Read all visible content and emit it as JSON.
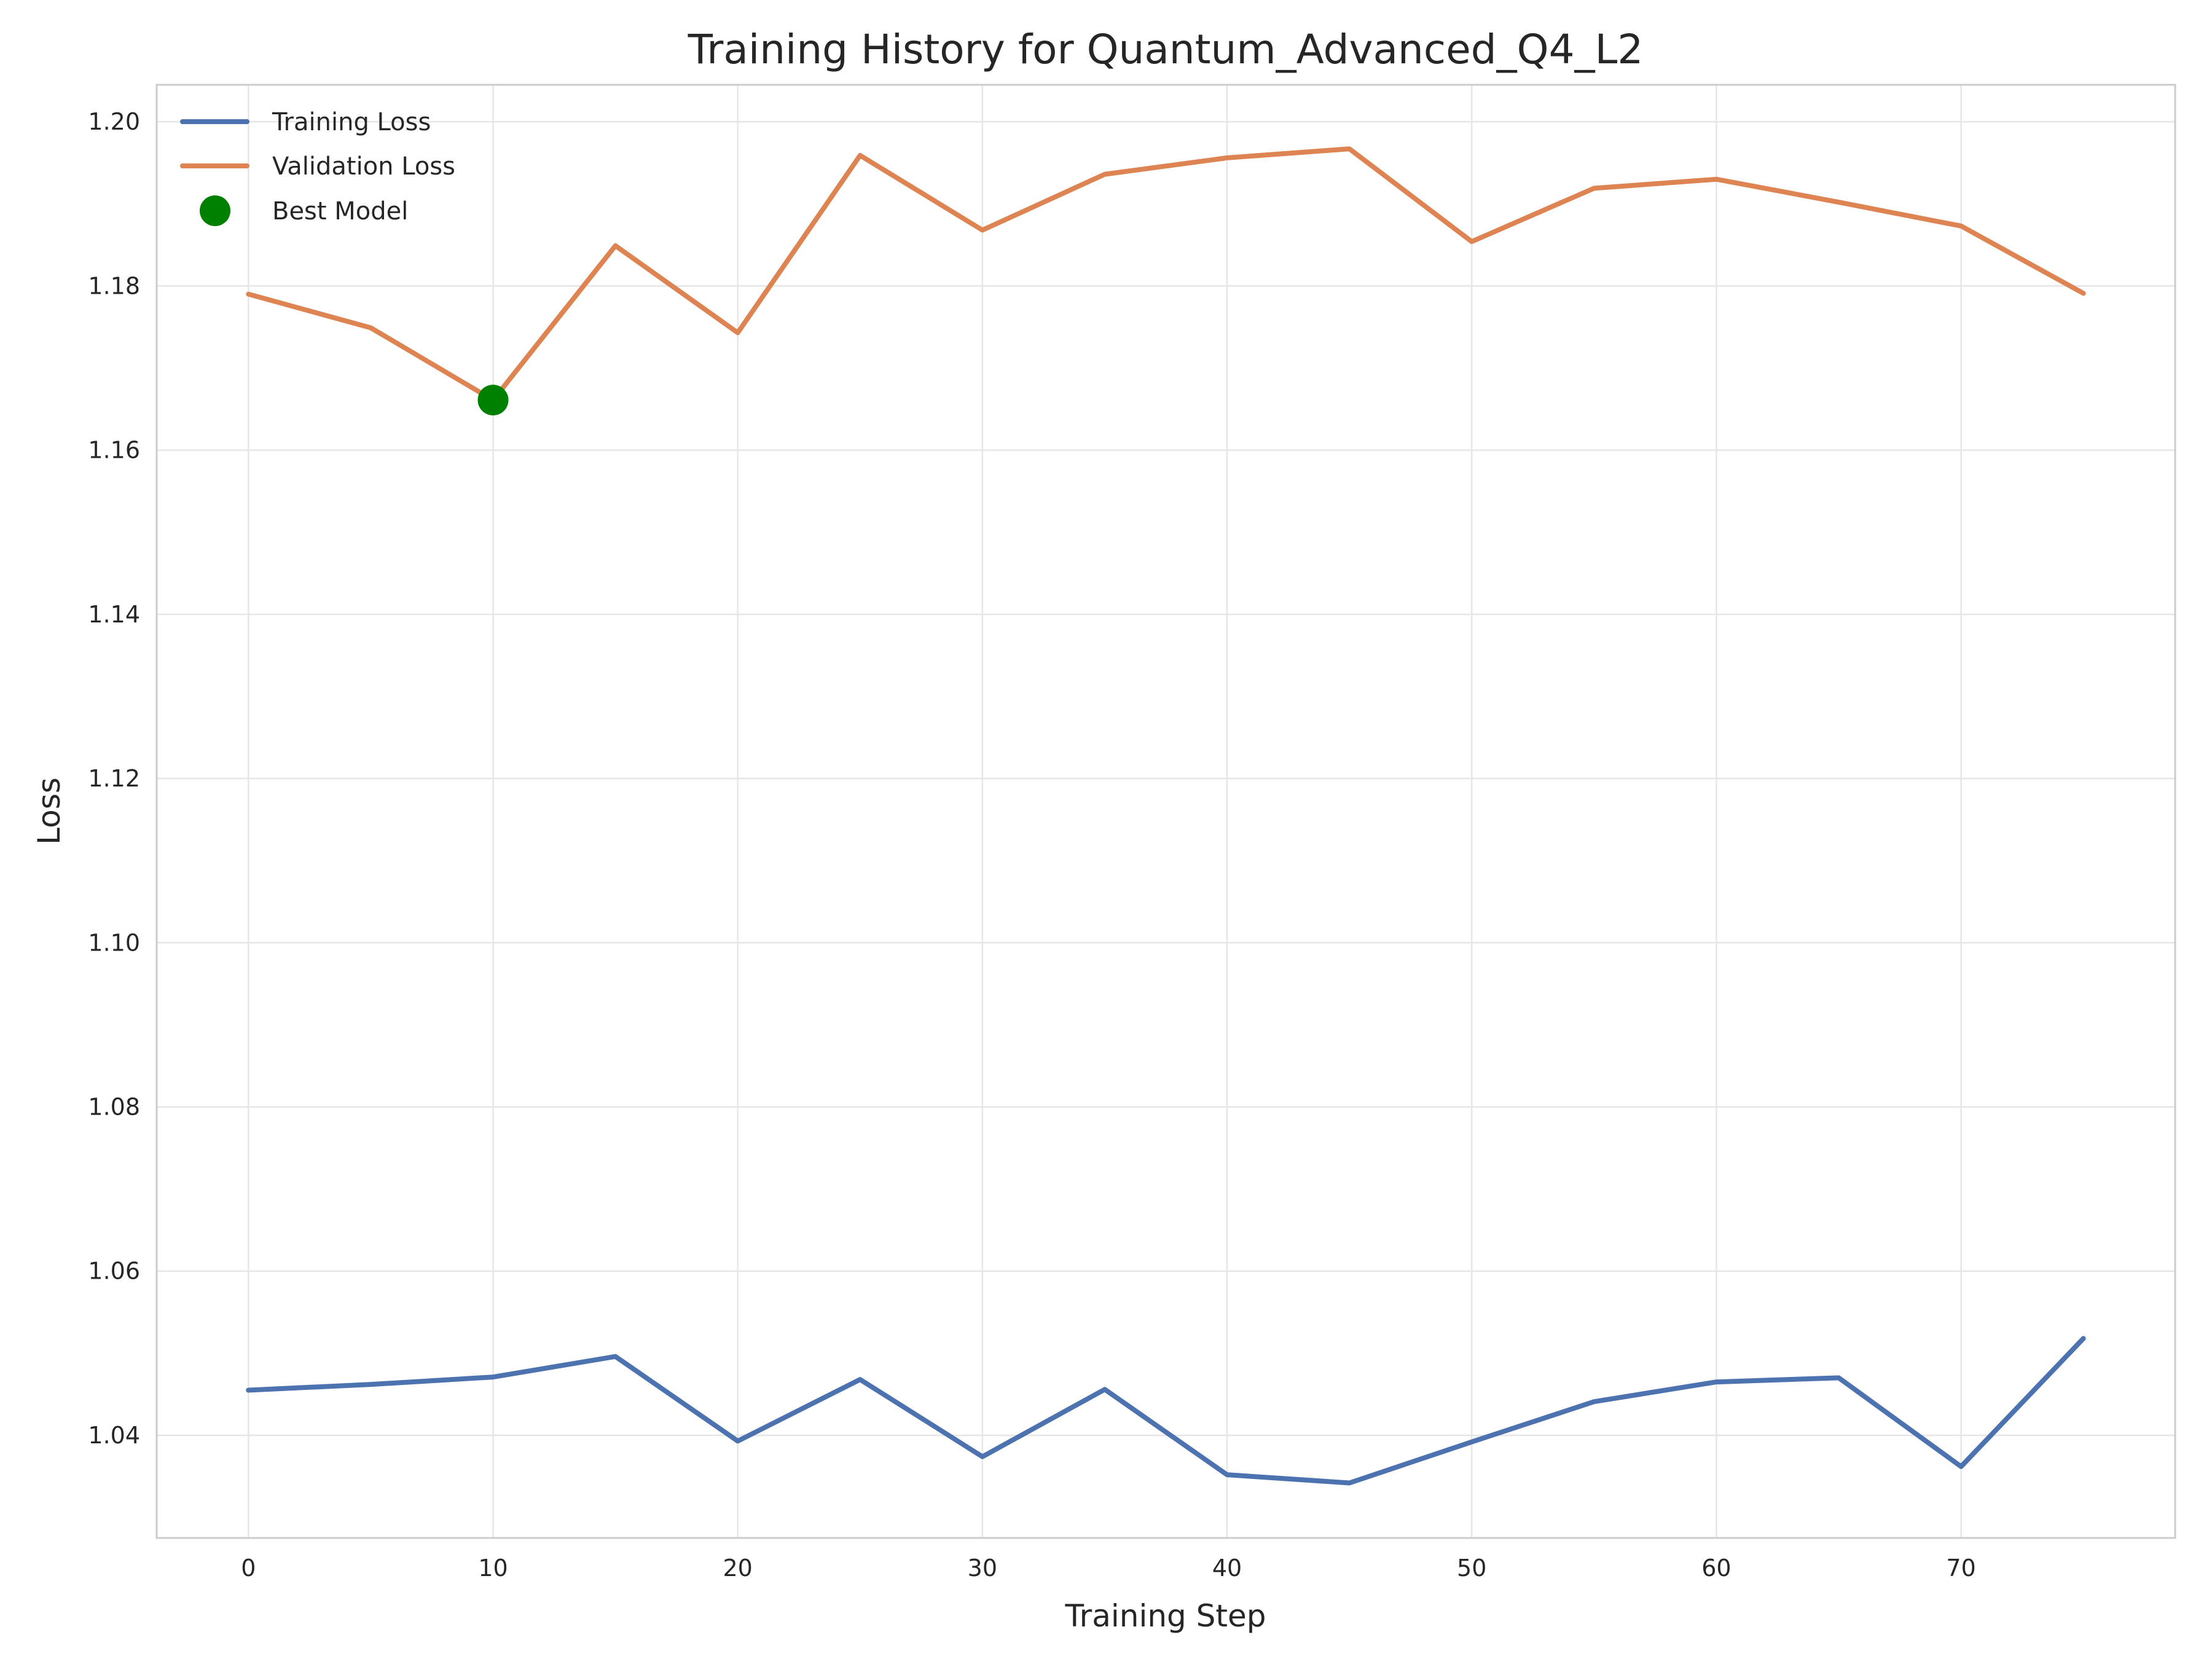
{
  "chart_data": {
    "type": "line",
    "title": "Training History for Quantum_Advanced_Q4_L2",
    "xlabel": "Training Step",
    "ylabel": "Loss",
    "xlim": [
      -3.75,
      78.75
    ],
    "ylim": [
      1.0275,
      1.2045
    ],
    "x_ticks": [
      0,
      10,
      20,
      30,
      40,
      50,
      60,
      70
    ],
    "y_ticks": [
      1.04,
      1.06,
      1.08,
      1.1,
      1.12,
      1.14,
      1.16,
      1.18,
      1.2
    ],
    "x_tick_labels": [
      "0",
      "10",
      "20",
      "30",
      "40",
      "50",
      "60",
      "70"
    ],
    "y_tick_labels": [
      "1.04",
      "1.06",
      "1.08",
      "1.10",
      "1.12",
      "1.14",
      "1.16",
      "1.18",
      "1.20"
    ],
    "grid": true,
    "legend_position": "top-left",
    "x": [
      0,
      5,
      10,
      15,
      20,
      25,
      30,
      35,
      40,
      45,
      50,
      55,
      60,
      65,
      70,
      75
    ],
    "series": [
      {
        "name": "Training Loss",
        "color": "#4c72b0",
        "values": [
          1.0455,
          1.0462,
          1.0471,
          1.0496,
          1.0393,
          1.0468,
          1.0374,
          1.0456,
          1.0352,
          1.0342,
          1.0392,
          1.0441,
          1.0465,
          1.047,
          1.0362,
          1.0518
        ]
      },
      {
        "name": "Validation Loss",
        "color": "#dd8452",
        "values": [
          1.179,
          1.1749,
          1.1661,
          1.1849,
          1.1743,
          1.1959,
          1.1868,
          1.1936,
          1.1956,
          1.1967,
          1.1854,
          1.1919,
          1.193,
          1.1902,
          1.1873,
          1.1791
        ]
      }
    ],
    "annotations": [
      {
        "name": "Best Model",
        "type": "marker",
        "color": "#008000",
        "x": 10,
        "y": 1.1661
      }
    ]
  }
}
